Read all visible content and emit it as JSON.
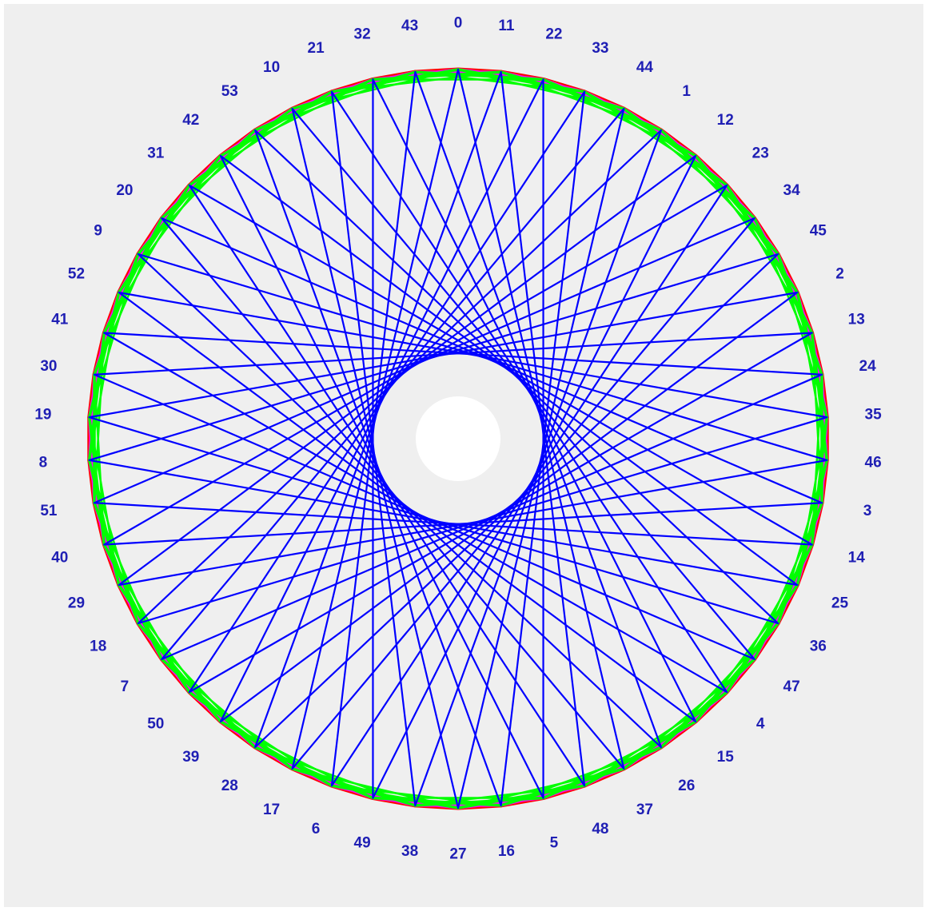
{
  "diagram": {
    "type": "modular-string-art",
    "node_count": 54,
    "label_step": 11,
    "labels": [
      "0",
      "11",
      "22",
      "33",
      "44",
      "1",
      "12",
      "23",
      "34",
      "45",
      "2",
      "13",
      "24",
      "35",
      "46",
      "3",
      "14",
      "25",
      "36",
      "47",
      "4",
      "15",
      "26",
      "37",
      "48",
      "5",
      "16",
      "27",
      "38",
      "49",
      "6",
      "17",
      "28",
      "39",
      "50",
      "7",
      "18",
      "29",
      "40",
      "51",
      "8",
      "19",
      "30",
      "41",
      "52",
      "9",
      "20",
      "31",
      "42",
      "53",
      "10",
      "21",
      "32",
      "43"
    ],
    "chords": [
      {
        "name": "red-chords",
        "skip": 1,
        "color": "#ff0000"
      },
      {
        "name": "magenta-chords",
        "skip": 2,
        "color": "#ff00ff"
      },
      {
        "name": "green-chords",
        "skip": 3,
        "color": "#00ff00"
      },
      {
        "name": "green-chords-outer",
        "skip": 4,
        "color": "#00ff00"
      },
      {
        "name": "blue-chords",
        "skip": 23,
        "color": "#0000ff"
      }
    ]
  },
  "colors": {
    "background": "#efefef",
    "label": "#1f1fb4",
    "red": "#ff0000",
    "magenta": "#ff00ff",
    "green": "#00ff00",
    "blue": "#0000ff"
  }
}
